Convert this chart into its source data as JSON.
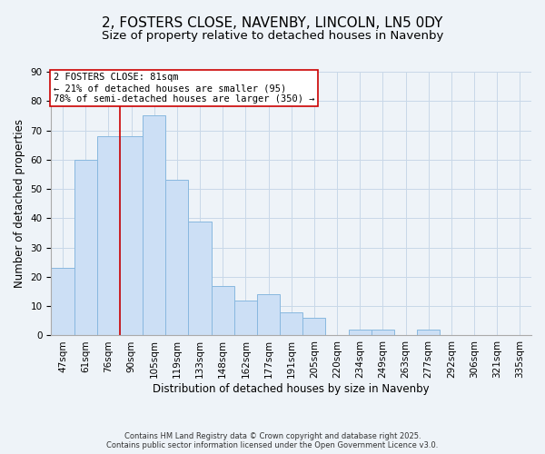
{
  "title": "2, FOSTERS CLOSE, NAVENBY, LINCOLN, LN5 0DY",
  "subtitle": "Size of property relative to detached houses in Navenby",
  "xlabel": "Distribution of detached houses by size in Navenby",
  "ylabel": "Number of detached properties",
  "bar_color": "#ccdff5",
  "bar_edge_color": "#88b8df",
  "bin_labels": [
    "47sqm",
    "61sqm",
    "76sqm",
    "90sqm",
    "105sqm",
    "119sqm",
    "133sqm",
    "148sqm",
    "162sqm",
    "177sqm",
    "191sqm",
    "205sqm",
    "220sqm",
    "234sqm",
    "249sqm",
    "263sqm",
    "277sqm",
    "292sqm",
    "306sqm",
    "321sqm",
    "335sqm"
  ],
  "bar_heights": [
    23,
    60,
    68,
    68,
    75,
    53,
    39,
    17,
    12,
    14,
    8,
    6,
    0,
    2,
    2,
    0,
    2,
    0,
    0,
    0,
    0
  ],
  "ylim": [
    0,
    90
  ],
  "yticks": [
    0,
    10,
    20,
    30,
    40,
    50,
    60,
    70,
    80,
    90
  ],
  "vline_index": 2.5,
  "property_line_label": "2 FOSTERS CLOSE: 81sqm",
  "annotation_line1": "← 21% of detached houses are smaller (95)",
  "annotation_line2": "78% of semi-detached houses are larger (350) →",
  "annotation_box_facecolor": "#ffffff",
  "annotation_box_edgecolor": "#cc0000",
  "vline_color": "#cc0000",
  "grid_color": "#c8d8e8",
  "background_color": "#eef3f8",
  "footer1": "Contains HM Land Registry data © Crown copyright and database right 2025.",
  "footer2": "Contains public sector information licensed under the Open Government Licence v3.0.",
  "title_fontsize": 11,
  "subtitle_fontsize": 9.5,
  "axis_label_fontsize": 8.5,
  "tick_fontsize": 7.5,
  "annotation_fontsize": 7.5,
  "footer_fontsize": 6
}
